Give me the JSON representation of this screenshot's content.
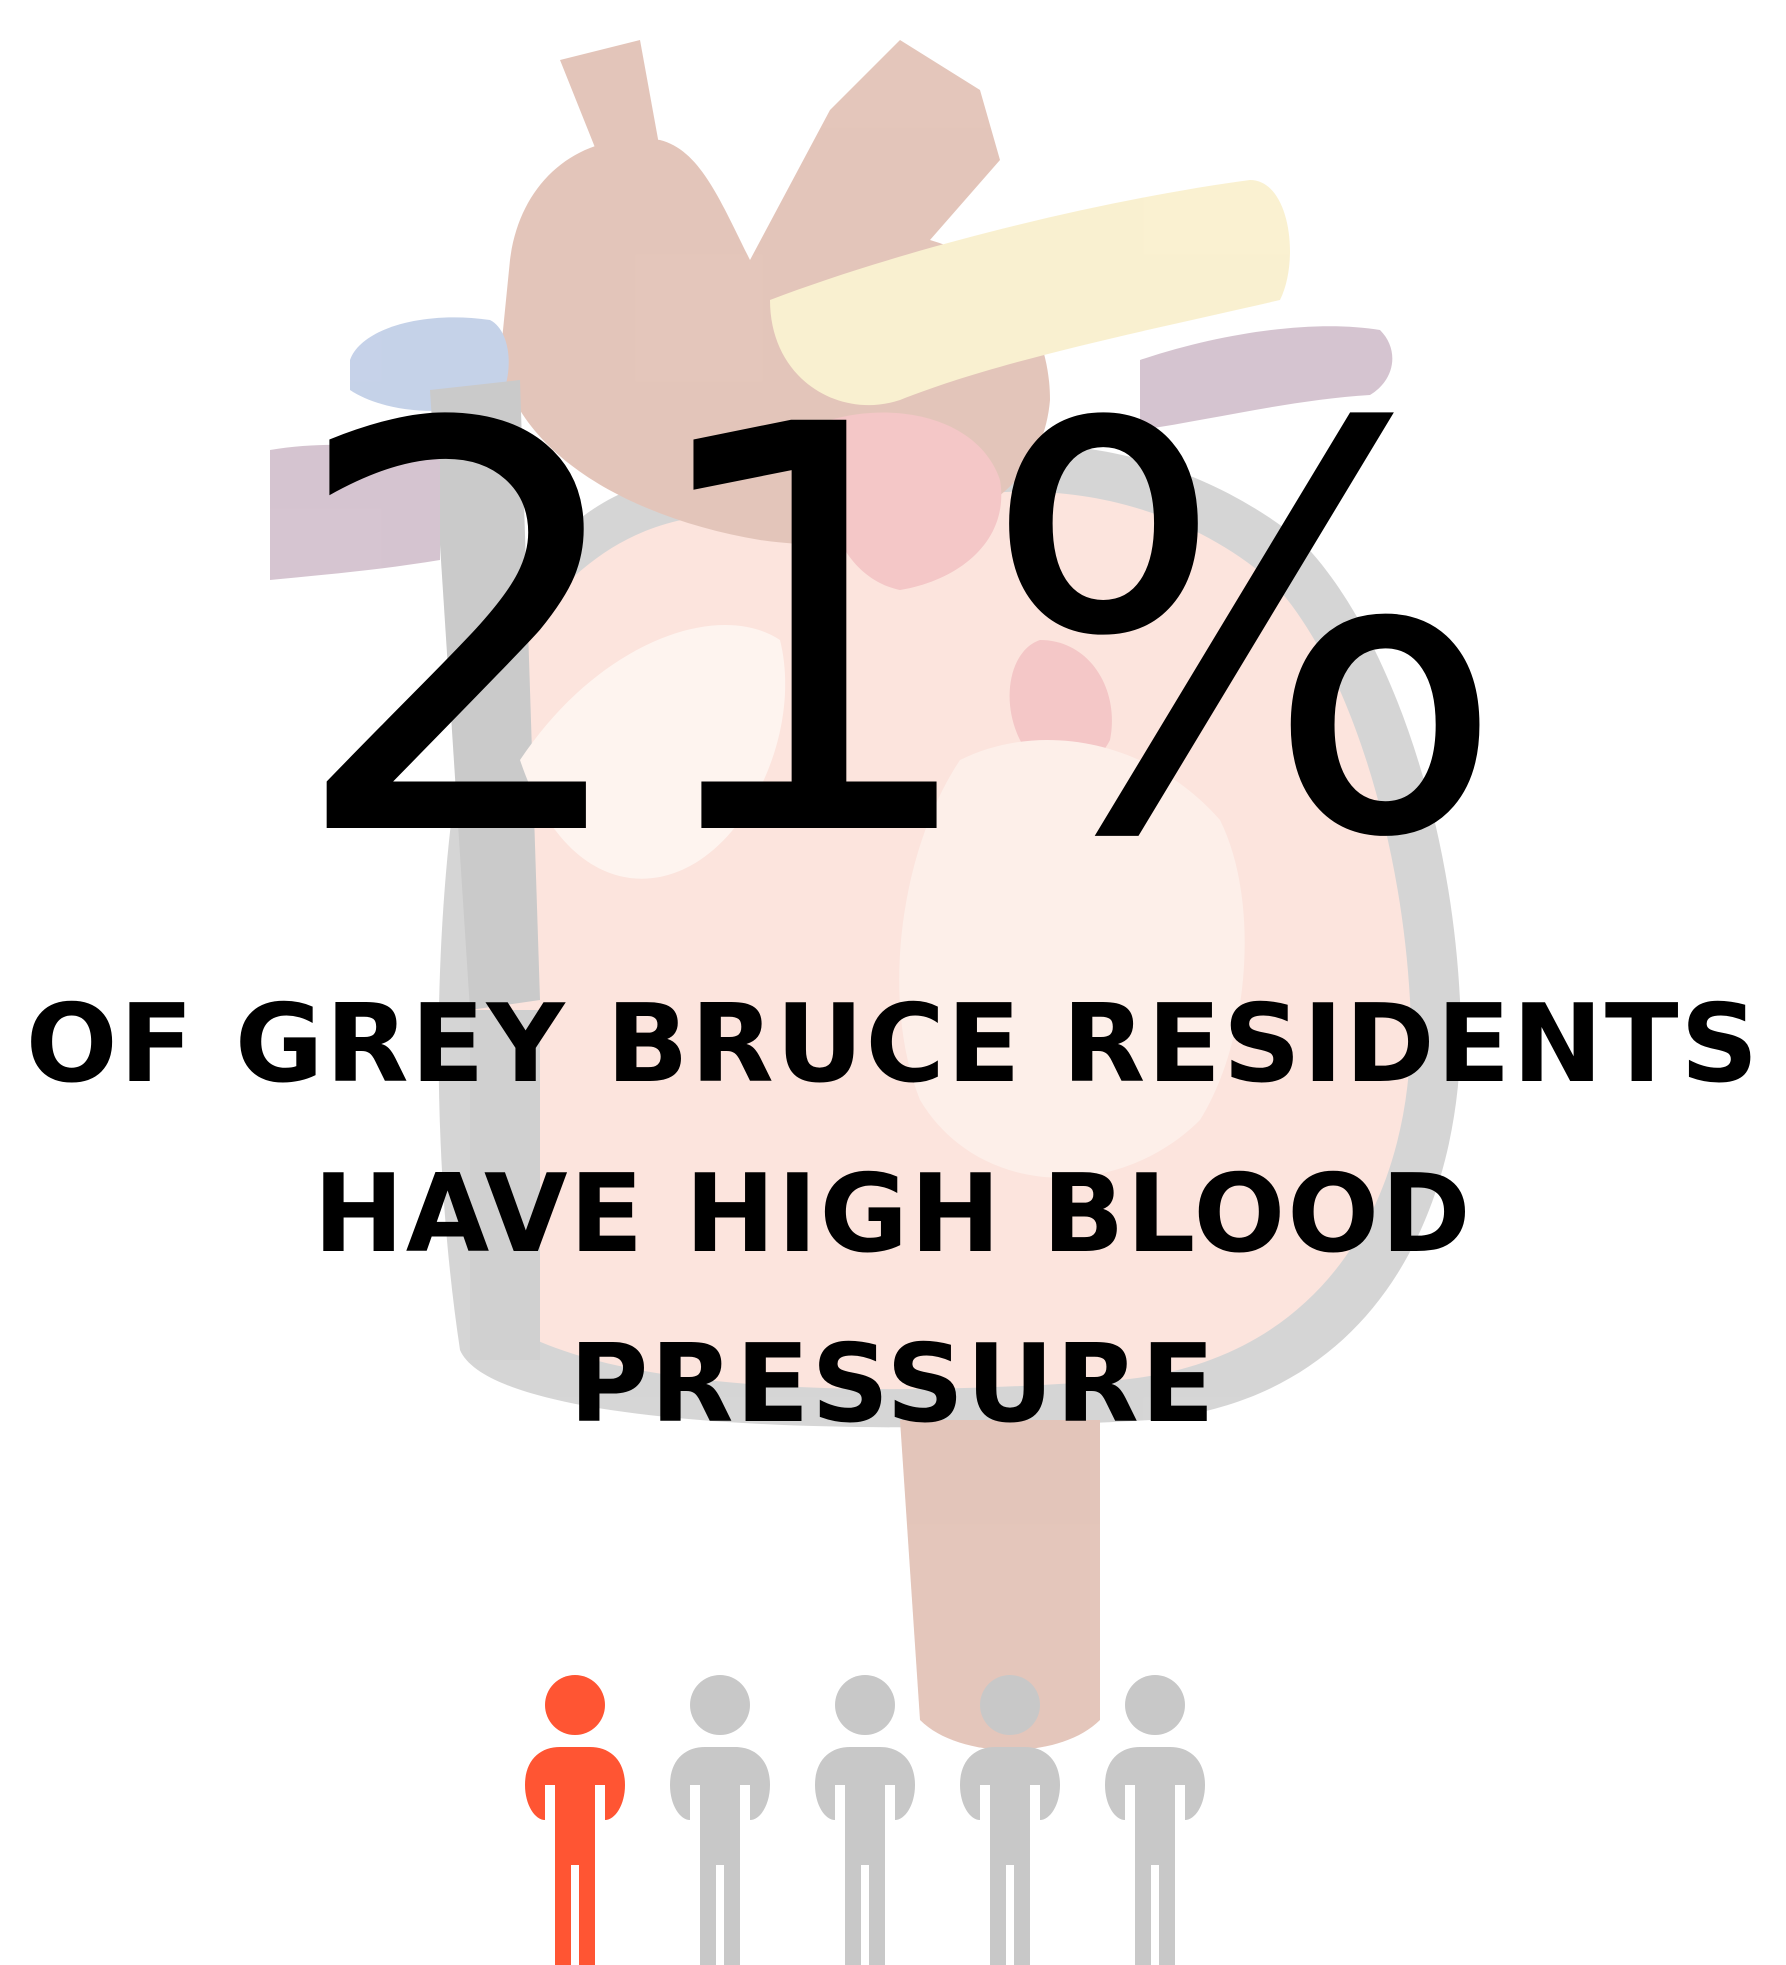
{
  "headline": {
    "value": "21%",
    "percent": 21
  },
  "caption": {
    "lines": [
      "OF GREY BRUCE RESIDENTS",
      "HAVE HIGH BLOOD",
      "PRESSURE"
    ]
  },
  "pictogram": {
    "total_people": 5,
    "highlighted_people": 1,
    "highlight_color": "#ff5533",
    "base_color": "#c8c8c8"
  },
  "background": {
    "icon": "heart-anatomy-illustration"
  }
}
